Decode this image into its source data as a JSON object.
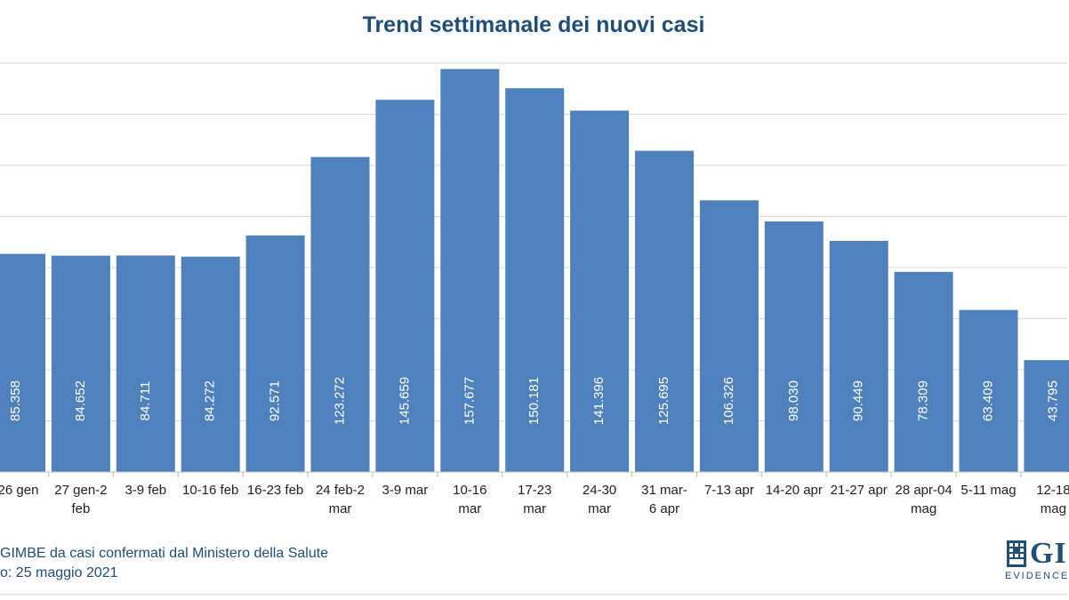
{
  "chart_data": {
    "type": "bar",
    "title": "Trend settimanale dei nuovi casi",
    "categories": [
      "-26 gen",
      "27 gen-2 feb",
      "3-9 feb",
      "10-16 feb",
      "16-23 feb",
      "24 feb-2 mar",
      "3-9 mar",
      "10-16 mar",
      "17-23 mar",
      "24-30 mar",
      "31 mar-6 apr",
      "7-13 apr",
      "14-20 apr",
      "21-27 apr",
      "28 apr-04 mag",
      "5-11 mag",
      "12-18 mag"
    ],
    "values": [
      85358,
      84652,
      84711,
      84272,
      92571,
      123272,
      145659,
      157677,
      150181,
      141396,
      125695,
      106326,
      98030,
      90449,
      78309,
      63409,
      43795
    ],
    "value_labels": [
      "85.358",
      "84.652",
      "84.711",
      "84.272",
      "92.571",
      "123.272",
      "145.659",
      "157.677",
      "150.181",
      "141.396",
      "125.695",
      "106.326",
      "98.030",
      "90.449",
      "78.309",
      "63.409",
      "43.795"
    ],
    "tick_lines": [
      [
        "-26 gen"
      ],
      [
        "27 gen-2",
        "feb"
      ],
      [
        "3-9 feb"
      ],
      [
        "10-16 feb"
      ],
      [
        "16-23 feb"
      ],
      [
        "24 feb-2",
        "mar"
      ],
      [
        "3-9 mar"
      ],
      [
        "10-16",
        "mar"
      ],
      [
        "17-23",
        "mar"
      ],
      [
        "24-30",
        "mar"
      ],
      [
        "31 mar-",
        "6 apr"
      ],
      [
        "7-13 apr"
      ],
      [
        "14-20 apr"
      ],
      [
        "21-27 apr"
      ],
      [
        "28 apr-04",
        "mag"
      ],
      [
        "5-11 mag"
      ],
      [
        "12-18",
        "mag"
      ]
    ],
    "ylim": [
      0,
      160000
    ],
    "grid": true,
    "bar_color": "#4f81bd",
    "xlabel": "",
    "ylabel": ""
  },
  "footer": {
    "source_line": "GIMBE da casi confermati dal Ministero della Salute",
    "date_line": "o: 25 maggio 2021"
  },
  "logo": {
    "name": "GI",
    "tagline": "EVIDENCE",
    "color": "#1f4e79"
  }
}
